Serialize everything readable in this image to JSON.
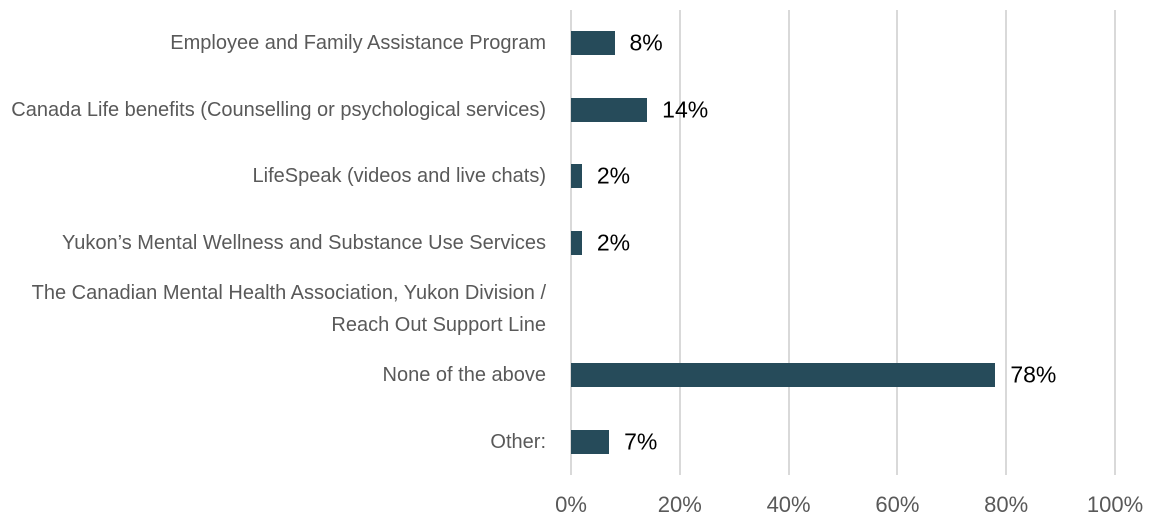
{
  "chart_data": {
    "type": "bar",
    "orientation": "horizontal",
    "categories": [
      "Employee and Family Assistance Program",
      "Canada Life benefits (Counselling or psychological services)",
      "LifeSpeak (videos and live chats)",
      "Yukon’s Mental Wellness and Substance Use Services",
      "The Canadian Mental Health Association, Yukon Division / Reach Out Support Line",
      "None of the above",
      "Other:"
    ],
    "values": [
      8,
      14,
      2,
      2,
      null,
      78,
      7
    ],
    "value_labels": [
      "8%",
      "14%",
      "2%",
      "2%",
      null,
      "78%",
      "7%"
    ],
    "color": "#264b5a",
    "xlim": [
      0,
      100
    ],
    "xticks": [
      {
        "value": 0,
        "label": "0%"
      },
      {
        "value": 20,
        "label": "20%"
      },
      {
        "value": 40,
        "label": "40%"
      },
      {
        "value": 60,
        "label": "60%"
      },
      {
        "value": 80,
        "label": "80%"
      },
      {
        "value": 100,
        "label": "100%"
      }
    ],
    "grid": true
  }
}
